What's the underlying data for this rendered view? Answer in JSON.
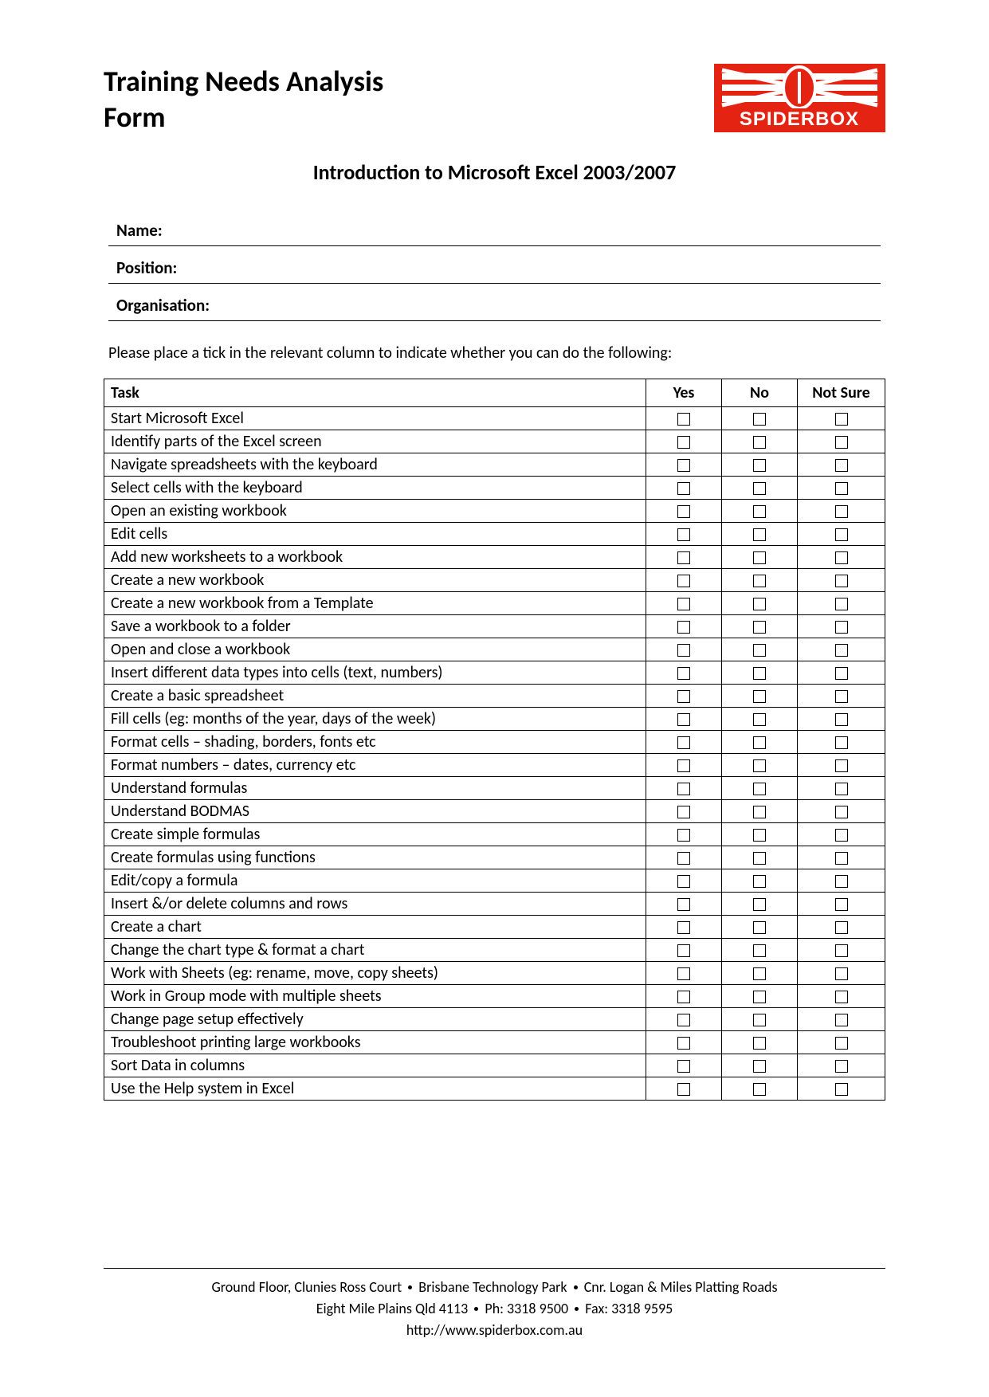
{
  "header": {
    "form_title_line1": "Training Needs Analysis",
    "form_title_line2": "Form",
    "logo_text": "SPIDERBOX",
    "logo_bg_color": "#e42313",
    "logo_text_color": "#ffffff",
    "logo_accent_color": "#ffffff"
  },
  "course": {
    "title": "Introduction to Microsoft Excel 2003/2007"
  },
  "fields": {
    "name_label": "Name:",
    "position_label": "Position:",
    "organisation_label": "Organisation:"
  },
  "instructions": "Please place a tick in the relevant column to indicate whether you can do the following:",
  "table": {
    "columns": {
      "task": "Task",
      "yes": "Yes",
      "no": "No",
      "not_sure": "Not Sure"
    },
    "rows": [
      "Start Microsoft Excel",
      "Identify parts of the Excel screen",
      "Navigate spreadsheets with the keyboard",
      "Select cells with the keyboard",
      "Open an existing workbook",
      "Edit cells",
      "Add new worksheets to a workbook",
      "Create a new workbook",
      "Create a new workbook from a Template",
      "Save a workbook to a folder",
      "Open and close a workbook",
      "Insert different data types into cells (text, numbers)",
      "Create a basic spreadsheet",
      "Fill cells (eg: months of the year, days of the week)",
      "Format cells – shading, borders, fonts etc",
      "Format numbers – dates, currency etc",
      "Understand formulas",
      "Understand BODMAS",
      "Create simple formulas",
      "Create formulas using functions",
      "Edit/copy a formula",
      "Insert &/or delete columns and rows",
      "Create a chart",
      "Change the chart type & format a chart",
      "Work with Sheets (eg: rename, move, copy sheets)",
      "Work in Group mode with multiple sheets",
      "Change page setup effectively",
      "Troubleshoot printing large workbooks",
      "Sort Data in columns",
      "Use the Help system in Excel"
    ]
  },
  "footer": {
    "line1_parts": [
      "Ground Floor, Clunies Ross Court",
      "Brisbane Technology Park",
      "Cnr. Logan & Miles Platting Roads"
    ],
    "line2_parts": [
      "Eight Mile Plains Qld 4113",
      "Ph: 3318 9500",
      "Fax: 3318 9595"
    ],
    "url": "http://www.spiderbox.com.au"
  }
}
